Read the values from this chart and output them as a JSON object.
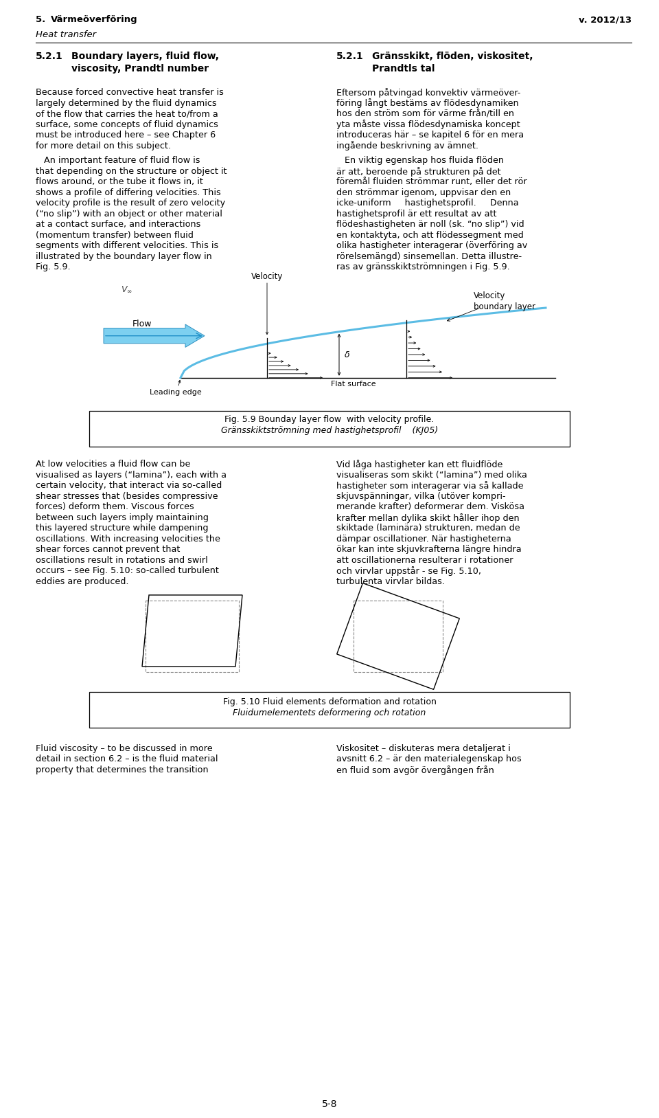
{
  "page_width": 9.6,
  "page_height": 16.27,
  "bg_color": "#ffffff",
  "header_left": "5.",
  "header_left_title": "Värmeöverföring",
  "header_left_italic": "Heat transfer",
  "header_right": "v. 2012/13",
  "fig59_caption_bold": "Fig. 5.9 Bounday layer flow  with velocity profile.",
  "fig59_caption_italic": "Gränsskiktströmning med hastighetsprofil    (KJ05)",
  "fig510_caption_bold": "Fig. 5.10 Fluid elements deformation and rotation",
  "fig510_caption_italic": "Fluidumelementets deformering och rotation",
  "page_number": "5-8"
}
